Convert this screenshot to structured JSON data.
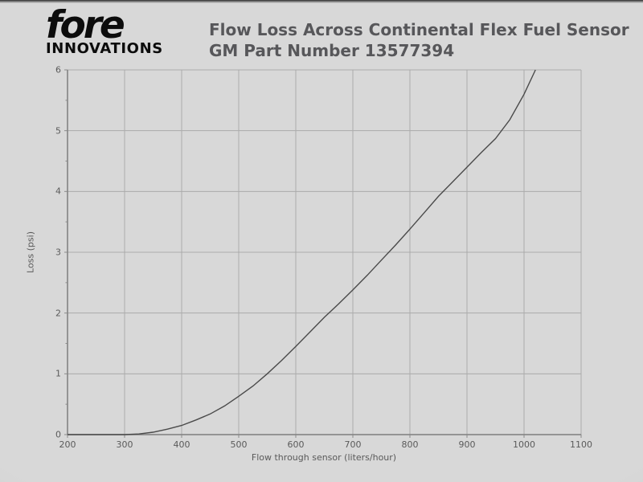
{
  "logo": {
    "brand": "fore",
    "sub": "INNOVATIONS"
  },
  "header": {
    "title_line1": "Flow Loss Across Continental Flex Fuel Sensor",
    "title_line2": "GM Part Number 13577394"
  },
  "colors": {
    "background": "#d8d8d8",
    "grid": "#ababab",
    "axis": "#7d7d7d",
    "tick": "#8a8a8a",
    "curve": "#4a4a4a",
    "title_text": "#57575a",
    "logo_text": "#0c0c0c"
  },
  "chart_data": {
    "type": "line",
    "title": "Flow Loss Across Continental Flex Fuel Sensor GM Part Number 13577394",
    "xlabel": "Flow through sensor (liters/hour)",
    "ylabel": "Loss (psi)",
    "xlim": [
      200,
      1100
    ],
    "ylim": [
      0,
      6
    ],
    "x_ticks": [
      200,
      300,
      400,
      500,
      600,
      700,
      800,
      900,
      1000,
      1100
    ],
    "y_ticks": [
      0,
      1,
      2,
      3,
      4,
      5,
      6
    ],
    "y_minor_ticks": [
      0.5,
      1.5,
      2.5,
      3.5,
      4.5,
      5.5
    ],
    "grid": true,
    "legend": "none",
    "series": [
      {
        "points": [
          [
            200,
            0
          ],
          [
            250,
            0
          ],
          [
            300,
            0
          ],
          [
            325,
            0.01
          ],
          [
            350,
            0.04
          ],
          [
            375,
            0.09
          ],
          [
            400,
            0.15
          ],
          [
            425,
            0.24
          ],
          [
            450,
            0.34
          ],
          [
            475,
            0.47
          ],
          [
            500,
            0.63
          ],
          [
            525,
            0.8
          ],
          [
            550,
            1.0
          ],
          [
            575,
            1.22
          ],
          [
            600,
            1.45
          ],
          [
            625,
            1.69
          ],
          [
            650,
            1.93
          ],
          [
            675,
            2.15
          ],
          [
            700,
            2.38
          ],
          [
            725,
            2.62
          ],
          [
            750,
            2.87
          ],
          [
            775,
            3.12
          ],
          [
            800,
            3.38
          ],
          [
            825,
            3.65
          ],
          [
            850,
            3.92
          ],
          [
            875,
            4.16
          ],
          [
            900,
            4.4
          ],
          [
            925,
            4.64
          ],
          [
            950,
            4.87
          ],
          [
            975,
            5.18
          ],
          [
            1000,
            5.6
          ],
          [
            1020,
            6.0
          ]
        ]
      }
    ]
  }
}
